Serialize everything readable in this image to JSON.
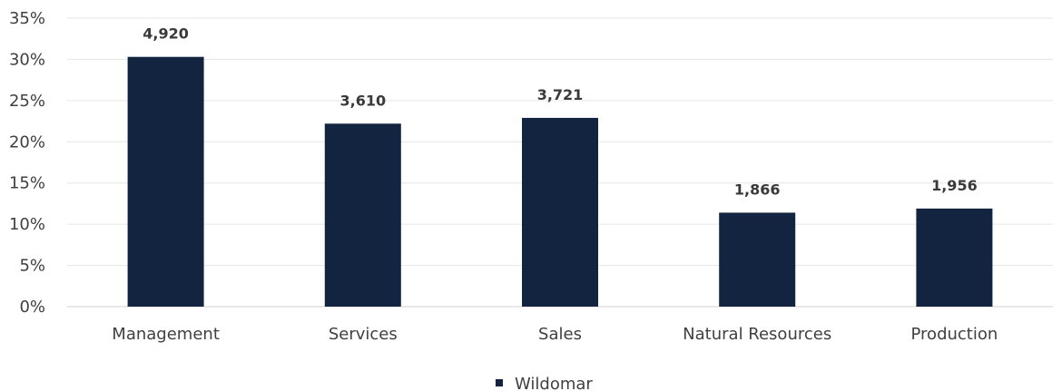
{
  "chart_data": {
    "type": "bar",
    "categories": [
      "Management",
      "Services",
      "Sales",
      "Natural Resources",
      "Production"
    ],
    "series": [
      {
        "name": "Wildomar",
        "values": [
          30.3,
          22.2,
          22.9,
          11.4,
          11.9
        ],
        "labels": [
          "4,920",
          "3,610",
          "3,721",
          "1,866",
          "1,956"
        ],
        "color": "#12243f"
      }
    ],
    "title": "",
    "xlabel": "",
    "ylabel": "",
    "ylim": [
      0,
      35
    ],
    "yticks": [
      "0%",
      "5%",
      "10%",
      "15%",
      "20%",
      "25%",
      "30%",
      "35%"
    ],
    "ytick_values": [
      0,
      5,
      10,
      15,
      20,
      25,
      30,
      35
    ],
    "grid": true,
    "legend_position": "bottom"
  }
}
